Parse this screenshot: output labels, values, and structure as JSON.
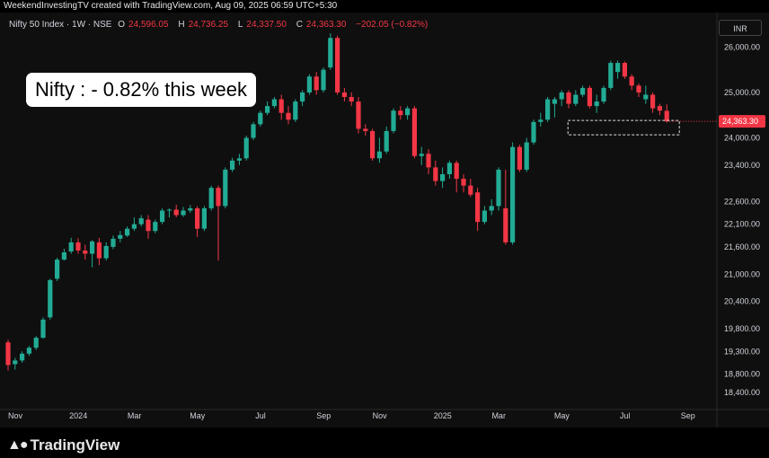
{
  "credit": "WeekendInvestingTV created with TradingView.com, Aug 09, 2025 06:59 UTC+5:30",
  "legend": {
    "symbol": "Nifty 50 Index · 1W · NSE",
    "o_label": "O",
    "o_value": "24,596.05",
    "h_label": "H",
    "h_value": "24,736.25",
    "l_label": "L",
    "l_value": "24,337.50",
    "c_label": "C",
    "c_value": "24,363.30",
    "change": "−202.05 (−0.82%)"
  },
  "currency_button": "INR",
  "annotation": "Nifty : - 0.82% this week",
  "brand": "TradingView",
  "colors": {
    "up": "#22ab94",
    "down": "#f23645",
    "bg": "#0f0f0f",
    "text": "#d1d4dc"
  },
  "chart_data": {
    "type": "candlestick",
    "ylim": [
      18100,
      26600
    ],
    "y_ticks": [
      26000,
      25000,
      24000,
      23400,
      22600,
      22100,
      21600,
      21000,
      20400,
      19800,
      19300,
      18800,
      18400
    ],
    "y_tick_labels": [
      "26,000.00",
      "25,000.00",
      "24,000.00",
      "23,400.00",
      "22,600.00",
      "22,100.00",
      "21,600.00",
      "21,000.00",
      "20,400.00",
      "19,800.00",
      "19,300.00",
      "18,800.00",
      "18,400.00"
    ],
    "x_labels": [
      "Nov",
      "2024",
      "Mar",
      "May",
      "Jul",
      "Sep",
      "Nov",
      "2025",
      "Mar",
      "May",
      "Jul",
      "Sep"
    ],
    "x_label_week_index": [
      0,
      9,
      17,
      26,
      35,
      44,
      52,
      61,
      69,
      78,
      87,
      96
    ],
    "last_price": 24363.3,
    "last_price_label": "24,363.30",
    "candles": [
      [
        19500,
        19000,
        18880,
        19560
      ],
      [
        19020,
        19100,
        18900,
        19160
      ],
      [
        19100,
        19250,
        19050,
        19300
      ],
      [
        19250,
        19380,
        19200,
        19420
      ],
      [
        19380,
        19600,
        19330,
        19640
      ],
      [
        19600,
        20000,
        19580,
        20050
      ],
      [
        20050,
        20870,
        20000,
        20900
      ],
      [
        20900,
        21320,
        20850,
        21360
      ],
      [
        21320,
        21480,
        21300,
        21560
      ],
      [
        21500,
        21700,
        21450,
        21800
      ],
      [
        21700,
        21520,
        21450,
        21790
      ],
      [
        21520,
        21450,
        21320,
        21650
      ],
      [
        21450,
        21720,
        21150,
        21750
      ],
      [
        21700,
        21350,
        21200,
        21800
      ],
      [
        21350,
        21620,
        21300,
        21700
      ],
      [
        21600,
        21780,
        21550,
        21850
      ],
      [
        21780,
        21860,
        21700,
        21950
      ],
      [
        21850,
        22000,
        21820,
        22050
      ],
      [
        22000,
        22100,
        21950,
        22250
      ],
      [
        22100,
        22230,
        22050,
        22300
      ],
      [
        22200,
        21950,
        21780,
        22300
      ],
      [
        21950,
        22150,
        21900,
        22200
      ],
      [
        22150,
        22400,
        22100,
        22450
      ],
      [
        22400,
        22420,
        22250,
        22450
      ],
      [
        22420,
        22300,
        22250,
        22530
      ],
      [
        22300,
        22400,
        22260,
        22480
      ],
      [
        22400,
        22450,
        22350,
        22520
      ],
      [
        22450,
        22000,
        21820,
        22500
      ],
      [
        22000,
        22450,
        21950,
        22500
      ],
      [
        22450,
        22900,
        22400,
        22950
      ],
      [
        22900,
        22500,
        21300,
        22950
      ],
      [
        22500,
        23300,
        22450,
        23350
      ],
      [
        23300,
        23500,
        23250,
        23560
      ],
      [
        23500,
        23550,
        23400,
        23650
      ],
      [
        23550,
        24000,
        23500,
        24050
      ],
      [
        24000,
        24300,
        23950,
        24350
      ],
      [
        24300,
        24550,
        24250,
        24600
      ],
      [
        24550,
        24700,
        24500,
        24800
      ],
      [
        24700,
        24850,
        24650,
        24900
      ],
      [
        24850,
        24550,
        24400,
        24950
      ],
      [
        24550,
        24400,
        24300,
        24700
      ],
      [
        24400,
        24800,
        24350,
        24850
      ],
      [
        24800,
        25000,
        24700,
        25050
      ],
      [
        25000,
        25350,
        24950,
        25400
      ],
      [
        25350,
        25050,
        24950,
        25450
      ],
      [
        25050,
        25500,
        25000,
        25550
      ],
      [
        25550,
        26200,
        25500,
        26300
      ],
      [
        26200,
        25000,
        24950,
        26250
      ],
      [
        25000,
        24900,
        24800,
        25100
      ],
      [
        24900,
        24800,
        24700,
        25000
      ],
      [
        24800,
        24200,
        24100,
        24900
      ],
      [
        24200,
        24150,
        24050,
        24300
      ],
      [
        24150,
        23550,
        23500,
        24200
      ],
      [
        23550,
        23700,
        23450,
        24000
      ],
      [
        23700,
        24150,
        23650,
        24250
      ],
      [
        24150,
        24600,
        24100,
        24650
      ],
      [
        24600,
        24500,
        24400,
        24700
      ],
      [
        24500,
        24650,
        24400,
        24700
      ],
      [
        24650,
        23600,
        23550,
        24700
      ],
      [
        23600,
        23650,
        23400,
        23800
      ],
      [
        23650,
        23350,
        23200,
        23750
      ],
      [
        23350,
        23050,
        22950,
        23500
      ],
      [
        23050,
        23200,
        22900,
        23350
      ],
      [
        23200,
        23450,
        23100,
        23500
      ],
      [
        23450,
        23100,
        22800,
        23500
      ],
      [
        23100,
        22950,
        22800,
        23200
      ],
      [
        22950,
        22750,
        22700,
        23100
      ],
      [
        22800,
        22150,
        21950,
        22900
      ],
      [
        22150,
        22400,
        22100,
        22500
      ],
      [
        22400,
        22500,
        22300,
        22650
      ],
      [
        22500,
        23300,
        22400,
        23350
      ],
      [
        22450,
        21700,
        21650,
        23300
      ],
      [
        21700,
        23800,
        21650,
        23900
      ],
      [
        23800,
        23300,
        23250,
        23850
      ],
      [
        23300,
        23900,
        23250,
        24000
      ],
      [
        23900,
        24350,
        23850,
        24400
      ],
      [
        24350,
        24400,
        24250,
        24550
      ],
      [
        24400,
        24850,
        24350,
        24900
      ],
      [
        24750,
        24850,
        24450,
        24900
      ],
      [
        24850,
        25000,
        24700,
        25050
      ],
      [
        25000,
        24750,
        24650,
        25050
      ],
      [
        24750,
        24950,
        24700,
        25050
      ],
      [
        24950,
        25100,
        24900,
        25150
      ],
      [
        25100,
        24700,
        24650,
        25150
      ],
      [
        24700,
        24800,
        24550,
        24950
      ],
      [
        24800,
        25100,
        24750,
        25150
      ],
      [
        25100,
        25650,
        25050,
        25700
      ],
      [
        25450,
        25650,
        25300,
        25700
      ],
      [
        25650,
        25350,
        25300,
        25680
      ],
      [
        25350,
        25150,
        25050,
        25400
      ],
      [
        25150,
        25000,
        24900,
        25200
      ],
      [
        24850,
        24950,
        24750,
        25150
      ],
      [
        24950,
        24650,
        24550,
        25000
      ],
      [
        24700,
        24600,
        24500,
        24750
      ],
      [
        24596.05,
        24363.3,
        24337.5,
        24736.25
      ]
    ]
  }
}
